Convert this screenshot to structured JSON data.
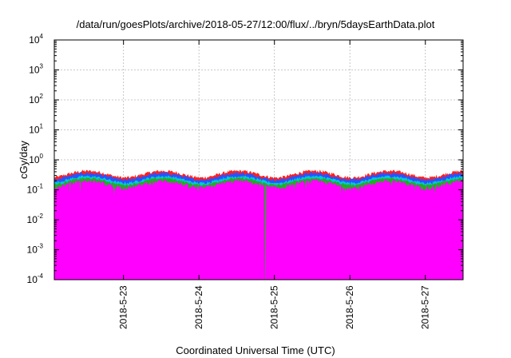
{
  "chart_data": {
    "type": "area",
    "title": "/data/run/goesPlots/archive/2018-05-27/12:00/flux/../bryn/5daysEarthData.plot",
    "xlabel": "Coordinated Universal Time (UTC)",
    "ylabel": "cGy/day",
    "x_axis": {
      "start": "2018-05-22 02:00",
      "end": "2018-05-27 12:00",
      "ticks": [
        "2018-5-23",
        "2018-5-24",
        "2018-5-25",
        "2018-5-26",
        "2018-5-27"
      ],
      "tick_days_from_start": [
        0.917,
        1.917,
        2.917,
        3.917,
        4.917
      ],
      "span_days": 5.417
    },
    "y_axis": {
      "scale": "log",
      "ylim": [
        0.0001,
        10000
      ],
      "ticks": [
        {
          "base": "10",
          "exp": "4",
          "value": 10000
        },
        {
          "base": "10",
          "exp": "3",
          "value": 1000
        },
        {
          "base": "10",
          "exp": "2",
          "value": 100
        },
        {
          "base": "10",
          "exp": "1",
          "value": 10
        },
        {
          "base": "10",
          "exp": "0",
          "value": 1
        },
        {
          "base": "10",
          "exp": "-1",
          "value": 0.1
        },
        {
          "base": "10",
          "exp": "-2",
          "value": 0.01
        },
        {
          "base": "10",
          "exp": "-3",
          "value": 0.001
        },
        {
          "base": "10",
          "exp": "-4",
          "value": 0.0001
        }
      ]
    },
    "grid": true,
    "series": [
      {
        "color": "#ff2020",
        "level": 0.33,
        "noise": 0.12
      },
      {
        "color": "#2a52ff",
        "level": 0.28,
        "noise": 0.11
      },
      {
        "color": "#00c8e0",
        "level": 0.22,
        "noise": 0.1
      },
      {
        "color": "#20b020",
        "level": 0.19,
        "noise": 0.09
      },
      {
        "color": "#ff00ff",
        "level": 0.15,
        "noise": 0.18
      }
    ],
    "dips": [
      {
        "day": 2.8,
        "series": "#ff00ff",
        "min_value": 0.0001
      }
    ]
  }
}
